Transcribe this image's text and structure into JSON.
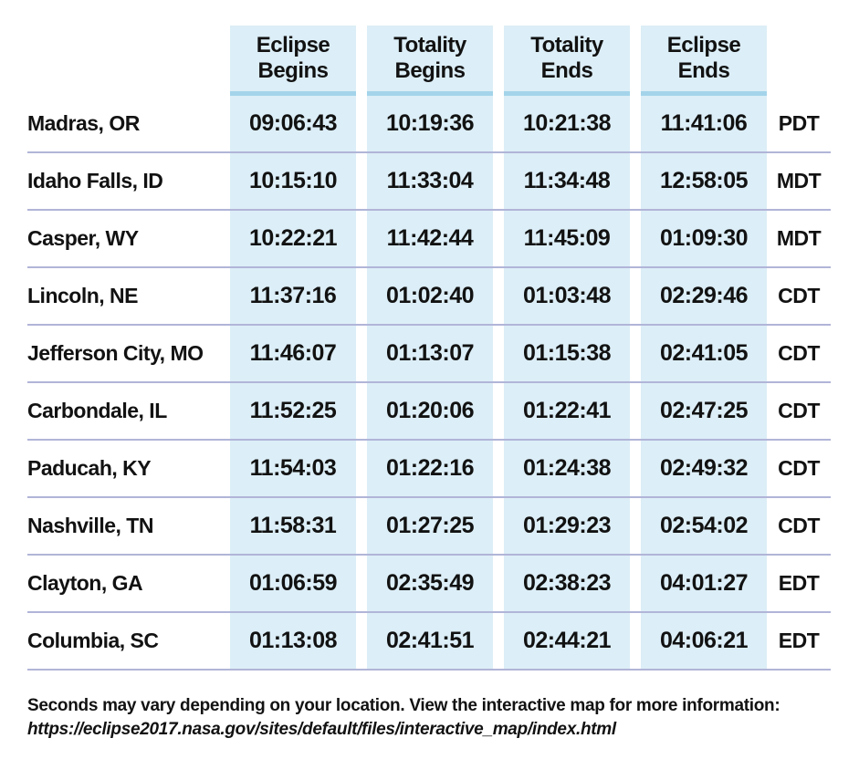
{
  "chart_data": {
    "type": "table",
    "header": [
      "Eclipse\nBegins",
      "Totality\nBegins",
      "Totality\nEnds",
      "Eclipse\nEnds"
    ],
    "row_label_column": "City",
    "rows": [
      {
        "city": "Madras, OR",
        "times": [
          "09:06:43",
          "10:19:36",
          "10:21:38",
          "11:41:06"
        ],
        "tz": "PDT"
      },
      {
        "city": "Idaho Falls, ID",
        "times": [
          "10:15:10",
          "11:33:04",
          "11:34:48",
          "12:58:05"
        ],
        "tz": "MDT"
      },
      {
        "city": "Casper, WY",
        "times": [
          "10:22:21",
          "11:42:44",
          "11:45:09",
          "01:09:30"
        ],
        "tz": "MDT"
      },
      {
        "city": "Lincoln, NE",
        "times": [
          "11:37:16",
          "01:02:40",
          "01:03:48",
          "02:29:46"
        ],
        "tz": "CDT"
      },
      {
        "city": "Jefferson City, MO",
        "times": [
          "11:46:07",
          "01:13:07",
          "01:15:38",
          "02:41:05"
        ],
        "tz": "CDT"
      },
      {
        "city": "Carbondale, IL",
        "times": [
          "11:52:25",
          "01:20:06",
          "01:22:41",
          "02:47:25"
        ],
        "tz": "CDT"
      },
      {
        "city": "Paducah, KY",
        "times": [
          "11:54:03",
          "01:22:16",
          "01:24:38",
          "02:49:32"
        ],
        "tz": "CDT"
      },
      {
        "city": "Nashville, TN",
        "times": [
          "11:58:31",
          "01:27:25",
          "01:29:23",
          "02:54:02"
        ],
        "tz": "CDT"
      },
      {
        "city": "Clayton, GA",
        "times": [
          "01:06:59",
          "02:35:49",
          "02:38:23",
          "04:01:27"
        ],
        "tz": "EDT"
      },
      {
        "city": "Columbia, SC",
        "times": [
          "01:13:08",
          "02:41:51",
          "02:44:21",
          "04:06:21"
        ],
        "tz": "EDT"
      }
    ]
  },
  "footer": {
    "note": "Seconds may vary depending on your location. View the interactive map for more information:",
    "url": "https://eclipse2017.nasa.gov/sites/default/files/interactive_map/index.html"
  },
  "colors": {
    "column_stripe": "#dceef7",
    "header_underline": "#a3d4ea",
    "row_divider": "#b1b5d8",
    "text": "#121212"
  }
}
